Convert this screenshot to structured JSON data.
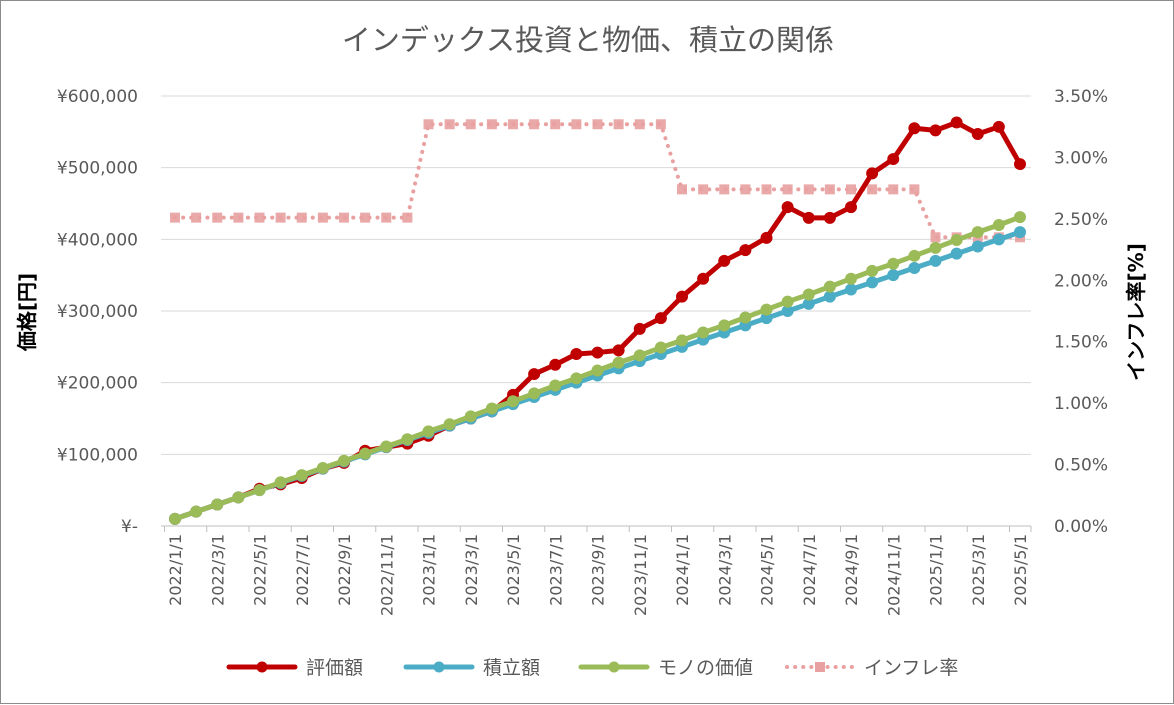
{
  "chart_data": {
    "type": "line",
    "title": "インデックス投資と物価、積立の関係",
    "ylabel": "価格[円]",
    "y2label": "インフレ率[%]",
    "ylim": [
      0,
      600000
    ],
    "y2lim": [
      0,
      3.5
    ],
    "yticks": [
      {
        "value": 0,
        "label": "¥-"
      },
      {
        "value": 100000,
        "label": "¥100,000"
      },
      {
        "value": 200000,
        "label": "¥200,000"
      },
      {
        "value": 300000,
        "label": "¥300,000"
      },
      {
        "value": 400000,
        "label": "¥400,000"
      },
      {
        "value": 500000,
        "label": "¥500,000"
      },
      {
        "value": 600000,
        "label": "¥600,000"
      }
    ],
    "y2ticks": [
      {
        "value": 0,
        "label": "0.00%"
      },
      {
        "value": 0.5,
        "label": "0.50%"
      },
      {
        "value": 1.0,
        "label": "1.00%"
      },
      {
        "value": 1.5,
        "label": "1.50%"
      },
      {
        "value": 2.0,
        "label": "2.00%"
      },
      {
        "value": 2.5,
        "label": "2.50%"
      },
      {
        "value": 3.0,
        "label": "3.00%"
      },
      {
        "value": 3.5,
        "label": "3.50%"
      }
    ],
    "x_tick_labels": [
      "2022/1/1",
      "2022/3/1",
      "2022/5/1",
      "2022/7/1",
      "2022/9/1",
      "2022/11/1",
      "2023/1/1",
      "2023/3/1",
      "2023/5/1",
      "2023/7/1",
      "2023/9/1",
      "2023/11/1",
      "2024/1/1",
      "2024/3/1",
      "2024/5/1",
      "2024/7/1",
      "2024/9/1",
      "2024/11/1",
      "2025/1/1",
      "2025/3/1",
      "2025/5/1"
    ],
    "x": [
      "2022/1/1",
      "2022/2/1",
      "2022/3/1",
      "2022/4/1",
      "2022/5/1",
      "2022/6/1",
      "2022/7/1",
      "2022/8/1",
      "2022/9/1",
      "2022/10/1",
      "2022/11/1",
      "2022/12/1",
      "2023/1/1",
      "2023/2/1",
      "2023/3/1",
      "2023/4/1",
      "2023/5/1",
      "2023/6/1",
      "2023/7/1",
      "2023/8/1",
      "2023/9/1",
      "2023/10/1",
      "2023/11/1",
      "2023/12/1",
      "2024/1/1",
      "2024/2/1",
      "2024/3/1",
      "2024/4/1",
      "2024/5/1",
      "2024/6/1",
      "2024/7/1",
      "2024/8/1",
      "2024/9/1",
      "2024/10/1",
      "2024/11/1",
      "2024/12/1",
      "2025/1/1",
      "2025/2/1",
      "2025/3/1",
      "2025/4/1",
      "2025/5/1"
    ],
    "legend_position": "bottom",
    "grid": true,
    "series": [
      {
        "name": "評価額",
        "axis": "left",
        "color": "#c00000",
        "style": "solid",
        "marker": "circle",
        "values": [
          10000,
          20000,
          30000,
          40000,
          52000,
          58000,
          67000,
          80000,
          88000,
          105000,
          110000,
          115000,
          126000,
          140000,
          150000,
          160000,
          183000,
          212000,
          225000,
          240000,
          242000,
          245000,
          275000,
          290000,
          320000,
          345000,
          370000,
          385000,
          402000,
          445000,
          430000,
          430000,
          445000,
          492000,
          512000,
          555000,
          552000,
          563000,
          547000,
          557000,
          505000
        ]
      },
      {
        "name": "積立額",
        "axis": "left",
        "color": "#4bacc6",
        "style": "solid",
        "marker": "circle",
        "values": [
          10000,
          20000,
          30000,
          40000,
          50000,
          60000,
          70000,
          80000,
          90000,
          100000,
          110000,
          120000,
          130000,
          140000,
          150000,
          160000,
          170000,
          180000,
          190000,
          200000,
          210000,
          220000,
          230000,
          240000,
          250000,
          260000,
          270000,
          280000,
          290000,
          300000,
          310000,
          320000,
          330000,
          340000,
          350000,
          360000,
          370000,
          380000,
          390000,
          400000,
          410000
        ]
      },
      {
        "name": "モノの価値",
        "axis": "left",
        "color": "#9bbb59",
        "style": "solid",
        "marker": "circle",
        "values": [
          10000,
          20000,
          30000,
          40000,
          50000,
          61000,
          71000,
          81000,
          91000,
          101000,
          111000,
          121000,
          132000,
          142000,
          153000,
          164000,
          174000,
          185000,
          196000,
          206000,
          217000,
          228000,
          238000,
          249000,
          259000,
          270000,
          280000,
          291000,
          302000,
          313000,
          323000,
          334000,
          345000,
          356000,
          366000,
          377000,
          388000,
          399000,
          410000,
          420000,
          431000
        ]
      },
      {
        "name": "インフレ率",
        "axis": "right",
        "color": "#e8a0a0",
        "style": "dotted",
        "marker": "square",
        "values": [
          2.51,
          2.51,
          2.51,
          2.51,
          2.51,
          2.51,
          2.51,
          2.51,
          2.51,
          2.51,
          2.51,
          2.51,
          3.27,
          3.27,
          3.27,
          3.27,
          3.27,
          3.27,
          3.27,
          3.27,
          3.27,
          3.27,
          3.27,
          3.27,
          2.74,
          2.74,
          2.74,
          2.74,
          2.74,
          2.74,
          2.74,
          2.74,
          2.74,
          2.74,
          2.74,
          2.74,
          2.35,
          2.35,
          2.35,
          2.35,
          2.35
        ]
      }
    ]
  }
}
